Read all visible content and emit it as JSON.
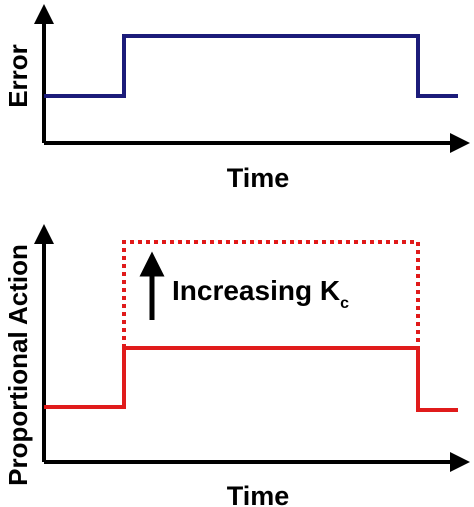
{
  "top_plot": {
    "y_label": "Error",
    "x_label": "Time"
  },
  "bottom_plot": {
    "y_label": "Proportional Action",
    "x_label": "Time",
    "annotation": {
      "text": "Increasing K",
      "subscript": "c"
    }
  }
}
